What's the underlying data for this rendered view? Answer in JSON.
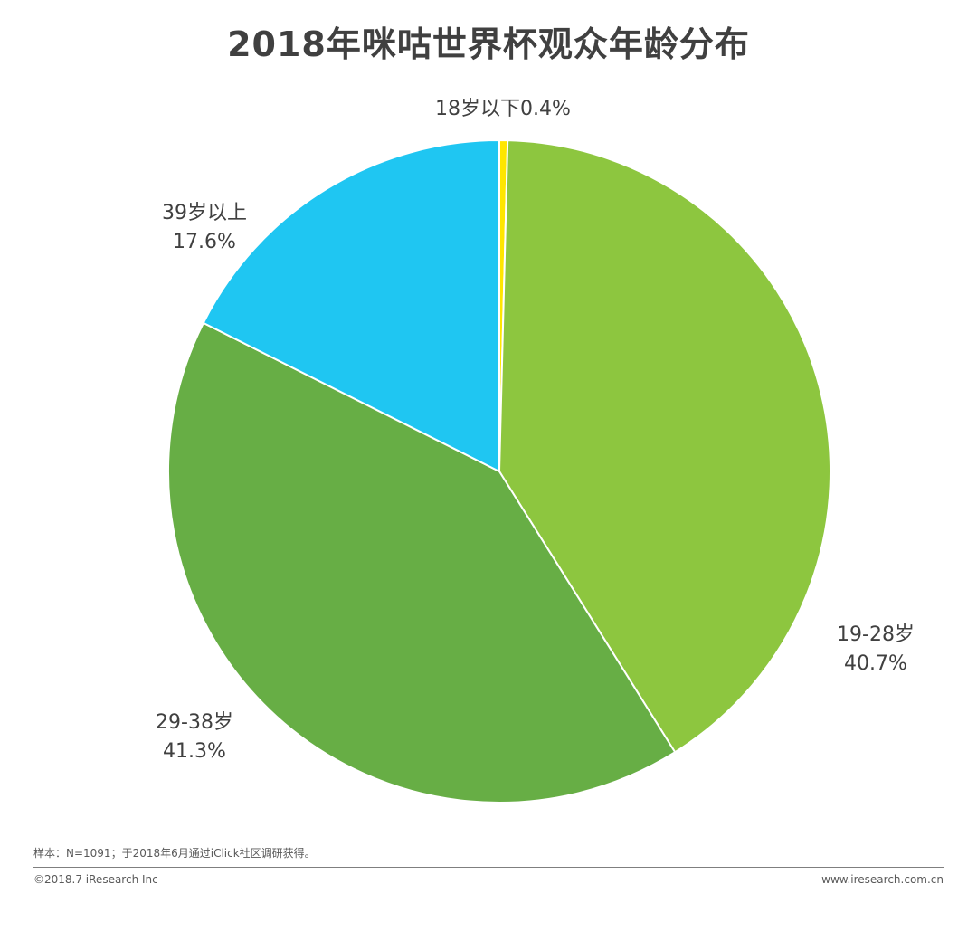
{
  "chart_data": {
    "type": "pie",
    "title": "2018年咪咕世界杯观众年龄分布",
    "slices": [
      {
        "label": "18岁以下",
        "value": 0.4,
        "value_label": "0.4%",
        "color": "#FFE600"
      },
      {
        "label": "19-28岁",
        "value": 40.7,
        "value_label": "40.7%",
        "color": "#8DC63F"
      },
      {
        "label": "29-38岁",
        "value": 41.3,
        "value_label": "41.3%",
        "color": "#67AE45"
      },
      {
        "label": "39岁以上",
        "value": 17.6,
        "value_label": "17.6%",
        "color": "#1FC6F2"
      }
    ],
    "start": "top",
    "direction": "clockwise",
    "slice_border_color": "#FFFFFF"
  },
  "footer": {
    "note": "样本：N=1091；于2018年6月通过iClick社区调研获得。",
    "copyright": "©2018.7 iResearch Inc",
    "website": "www.iresearch.com.cn"
  }
}
